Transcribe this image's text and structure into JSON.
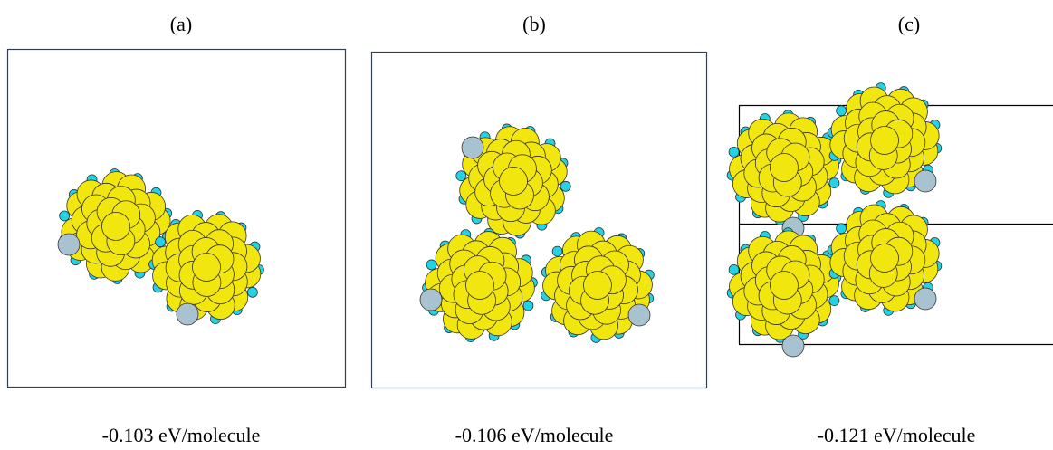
{
  "panels": [
    {
      "label": "(a)",
      "energy": "-0.103 eV/molecule"
    },
    {
      "label": "(b)",
      "energy": "-0.106 eV/molecule"
    },
    {
      "label": "(c)",
      "energy": "-0.121 eV/molecule"
    }
  ]
}
